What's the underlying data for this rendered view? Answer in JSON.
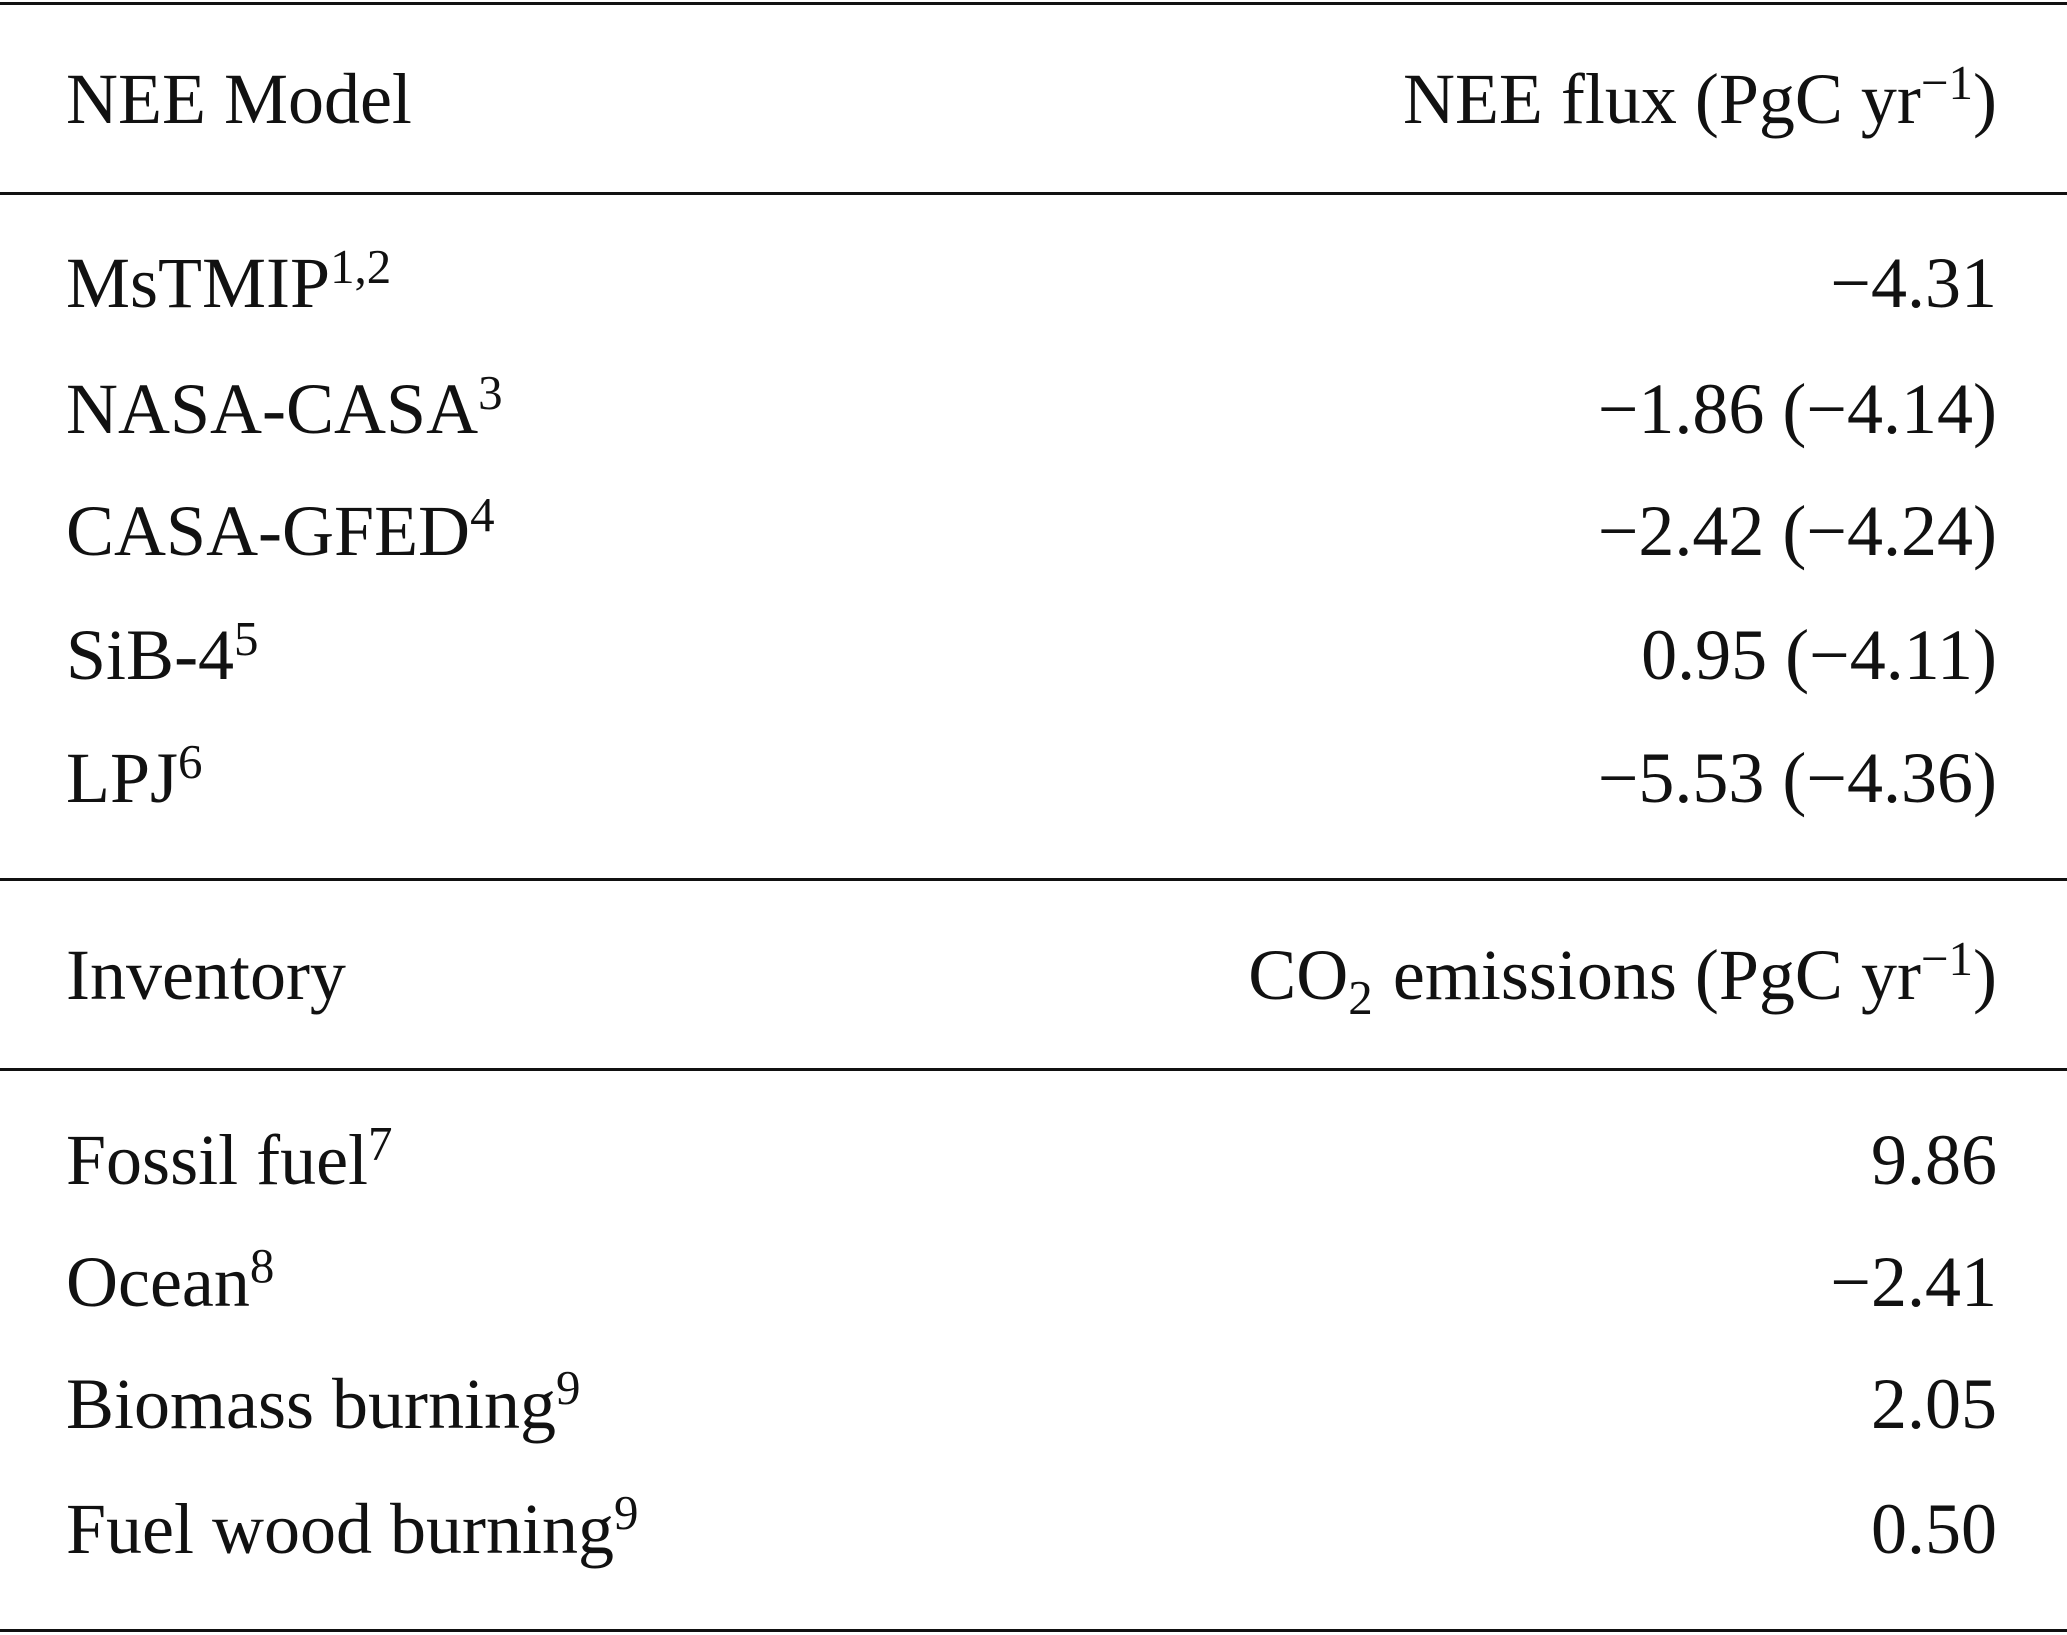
{
  "sections": [
    {
      "header": {
        "label": "NEE Model",
        "unit_pre": "",
        "unit_sub": "",
        "unit": "NEE flux (PgC yr",
        "unit_sup": "−1",
        "unit_end": ")"
      },
      "rows": [
        {
          "name": "MsTMIP",
          "note": "1,2",
          "value": "−4.31"
        },
        {
          "name": "NASA-CASA",
          "note": "3",
          "value": "−1.86 (−4.14)"
        },
        {
          "name": "CASA-GFED",
          "note": "4",
          "value": "−2.42 (−4.24)"
        },
        {
          "name": "SiB-4",
          "note": "5",
          "value": "0.95 (−4.11)"
        },
        {
          "name": "LPJ",
          "note": "6",
          "value": "−5.53 (−4.36)"
        }
      ]
    },
    {
      "header": {
        "label": "Inventory",
        "unit_pre": "CO",
        "unit_sub": "2",
        "unit": "emissions (PgC yr",
        "unit_sup": "−1",
        "unit_end": ")"
      },
      "rows": [
        {
          "name": "Fossil fuel",
          "note": "7",
          "value": "9.86"
        },
        {
          "name": "Ocean",
          "note": "8",
          "value": "−2.41"
        },
        {
          "name": "Biomass burning",
          "note": "9",
          "value": "2.05"
        },
        {
          "name": "Fuel wood burning",
          "note": "9",
          "value": "0.50"
        }
      ]
    }
  ]
}
